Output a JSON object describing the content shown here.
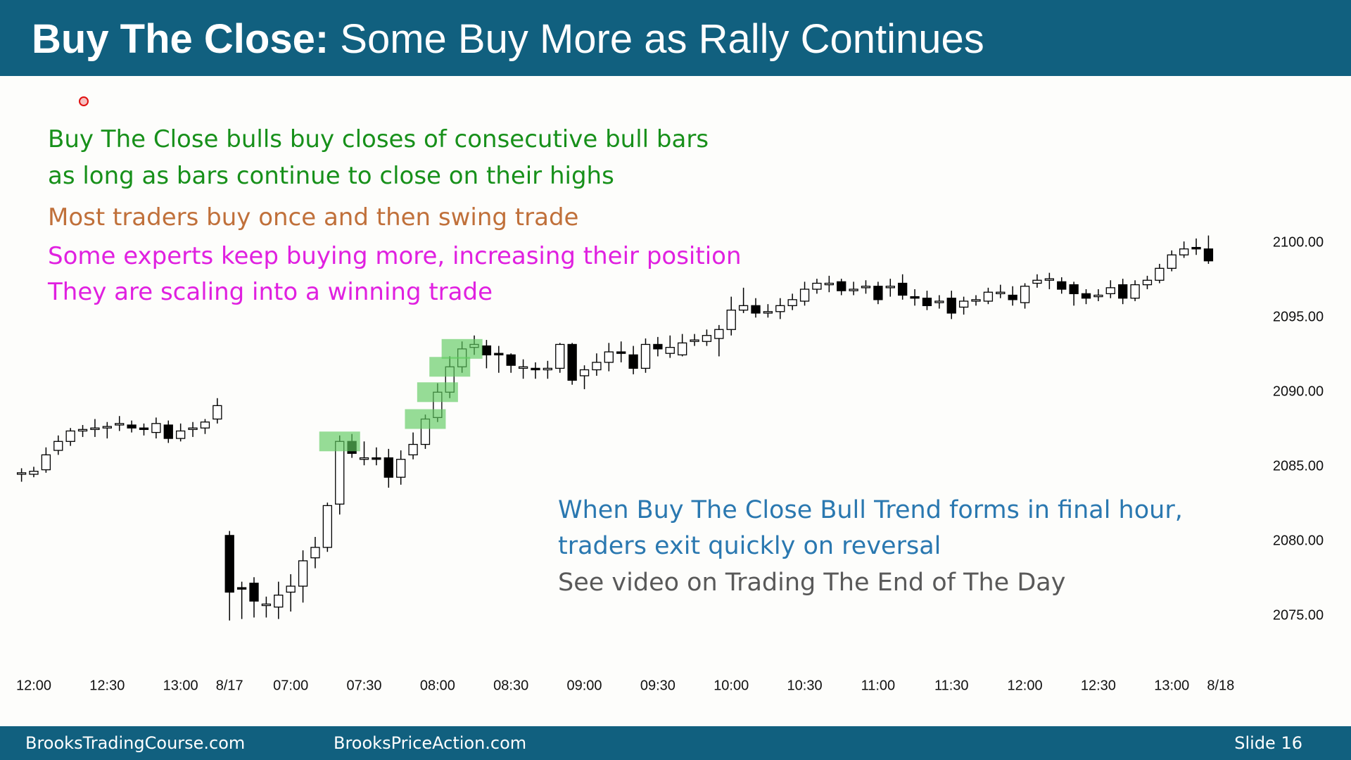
{
  "header": {
    "title_lead": "Buy The Close:",
    "title_rest": "Some Buy More as Rally Continues"
  },
  "notes": [
    {
      "text": "Buy The Close bulls buy closes of consecutive bull bars",
      "color": "#17901a"
    },
    {
      "text": "as long as bars continue to close on their highs",
      "color": "#17901a"
    },
    {
      "text": "Most traders buy once and then swing trade",
      "color": "#c0703a"
    },
    {
      "text": "Some experts keep buying more, increasing their position",
      "color": "#e020e0"
    },
    {
      "text": "They are scaling into a winning trade",
      "color": "#e020e0"
    }
  ],
  "bottom_notes": [
    {
      "text": "When Buy The Close Bull Trend forms in final hour,",
      "color": "#2a78b0"
    },
    {
      "text": "traders exit quickly on reversal",
      "color": "#2a78b0"
    },
    {
      "text": "See video on Trading The End of The Day",
      "color": "#595959"
    }
  ],
  "footer": {
    "left": "BrooksTradingCourse.com",
    "center": "BrooksPriceAction.com",
    "right": "Slide  16"
  },
  "chart_data": {
    "type": "candlestick",
    "categories": [
      null,
      "12:00",
      null,
      null,
      null,
      null,
      null,
      "12:30",
      null,
      null,
      null,
      null,
      null,
      "13:00",
      null,
      null,
      null,
      "8/17",
      null,
      null,
      null,
      null,
      "07:00",
      null,
      null,
      null,
      null,
      null,
      "07:30",
      null,
      null,
      null,
      null,
      null,
      "08:00",
      null,
      null,
      null,
      null,
      null,
      "08:30",
      null,
      null,
      null,
      null,
      null,
      "09:00",
      null,
      null,
      null,
      null,
      null,
      "09:30",
      null,
      null,
      null,
      null,
      null,
      "10:00",
      null,
      null,
      null,
      null,
      null,
      "10:30",
      null,
      null,
      null,
      null,
      null,
      "11:00",
      null,
      null,
      null,
      null,
      null,
      "11:30",
      null,
      null,
      null,
      null,
      null,
      "12:00",
      null,
      null,
      null,
      null,
      null,
      "12:30",
      null,
      null,
      null,
      null,
      null,
      "13:00",
      null,
      null,
      null,
      "8/18"
    ],
    "open": [
      2084.5,
      2084.5,
      2084.8,
      2086.1,
      2086.7,
      2087.4,
      2087.5,
      2087.6,
      2087.8,
      2087.8,
      2087.6,
      2087.3,
      2087.8,
      2086.9,
      2087.5,
      2087.6,
      2088.2,
      2080.4,
      2076.9,
      2077.2,
      2075.7,
      2075.6,
      2076.6,
      2077.0,
      2078.9,
      2079.6,
      2082.5,
      2086.7,
      2085.5,
      2085.6,
      2085.6,
      2084.3,
      2085.8,
      2086.5,
      2088.3,
      2090.0,
      2091.7,
      2093.0,
      2093.1,
      2092.6,
      2092.5,
      2091.6,
      2091.6,
      2091.5,
      2091.6,
      2093.2,
      2091.1,
      2091.5,
      2092.0,
      2092.7,
      2092.5,
      2091.6,
      2093.2,
      2092.6,
      2092.5,
      2093.4,
      2093.4,
      2093.6,
      2094.2,
      2095.5,
      2095.8,
      2095.3,
      2095.4,
      2095.8,
      2096.1,
      2096.9,
      2097.2,
      2097.4,
      2096.8,
      2097.0,
      2097.1,
      2097.0,
      2097.3,
      2096.4,
      2096.3,
      2096.0,
      2096.3,
      2095.7,
      2096.1,
      2096.1,
      2096.6,
      2096.5,
      2096.0,
      2097.3,
      2097.5,
      2097.4,
      2097.2,
      2096.6,
      2096.4,
      2096.6,
      2097.2,
      2096.3,
      2097.2,
      2097.5,
      2098.3,
      2099.2,
      2099.7,
      2099.6,
      null
    ],
    "high": [
      2084.9,
      2085.0,
      2086.3,
      2087.1,
      2087.6,
      2087.8,
      2088.2,
      2088.0,
      2088.4,
      2088.1,
      2087.9,
      2088.3,
      2088.1,
      2087.9,
      2088.0,
      2088.2,
      2089.6,
      2080.7,
      2077.3,
      2077.6,
      2076.3,
      2077.3,
      2077.8,
      2079.4,
      2080.3,
      2082.6,
      2087.1,
      2087.2,
      2086.7,
      2086.3,
      2086.2,
      2086.1,
      2087.3,
      2088.5,
      2090.6,
      2092.4,
      2093.4,
      2093.8,
      2093.5,
      2093.1,
      2092.6,
      2092.2,
      2092.0,
      2092.1,
      2093.3,
      2093.3,
      2091.8,
      2092.6,
      2093.3,
      2093.4,
      2093.1,
      2093.6,
      2093.7,
      2093.8,
      2093.9,
      2093.9,
      2094.2,
      2094.5,
      2096.4,
      2097.0,
      2096.3,
      2095.9,
      2096.3,
      2096.6,
      2097.4,
      2097.6,
      2097.8,
      2097.6,
      2097.4,
      2097.5,
      2097.4,
      2097.6,
      2097.9,
      2096.9,
      2096.8,
      2096.5,
      2096.8,
      2096.4,
      2096.5,
      2097.0,
      2097.2,
      2097.1,
      2097.3,
      2097.9,
      2098.0,
      2097.7,
      2097.4,
      2096.9,
      2096.9,
      2097.5,
      2097.6,
      2097.5,
      2097.8,
      2098.6,
      2099.5,
      2100.1,
      2100.3,
      2100.5,
      null
    ],
    "low": [
      2084.0,
      2084.3,
      2084.6,
      2085.8,
      2086.4,
      2087.0,
      2087.0,
      2086.9,
      2087.4,
      2087.3,
      2087.1,
      2086.9,
      2086.6,
      2086.7,
      2087.0,
      2087.2,
      2087.9,
      2074.7,
      2074.8,
      2074.9,
      2074.9,
      2074.8,
      2075.3,
      2075.9,
      2078.2,
      2079.3,
      2081.8,
      2085.6,
      2085.1,
      2085.1,
      2083.6,
      2083.8,
      2085.5,
      2086.2,
      2088.0,
      2089.6,
      2091.3,
      2092.5,
      2091.6,
      2091.3,
      2091.3,
      2090.9,
      2090.9,
      2090.9,
      2091.3,
      2090.5,
      2090.2,
      2091.1,
      2091.4,
      2092.0,
      2091.2,
      2091.3,
      2092.4,
      2092.3,
      2092.4,
      2093.1,
      2093.1,
      2092.4,
      2093.8,
      2095.3,
      2095.0,
      2095.0,
      2094.9,
      2095.5,
      2095.8,
      2096.6,
      2096.7,
      2096.5,
      2096.5,
      2096.6,
      2095.9,
      2096.4,
      2096.2,
      2095.8,
      2095.5,
      2095.6,
      2094.9,
      2095.2,
      2095.8,
      2095.9,
      2096.3,
      2095.8,
      2095.6,
      2097.0,
      2096.9,
      2096.6,
      2095.8,
      2095.9,
      2096.1,
      2096.3,
      2095.9,
      2096.1,
      2096.9,
      2097.3,
      2098.1,
      2099.0,
      2099.2,
      2098.6,
      null
    ],
    "close": [
      2084.6,
      2084.7,
      2085.8,
      2086.7,
      2087.4,
      2087.5,
      2087.6,
      2087.7,
      2087.9,
      2087.6,
      2087.5,
      2087.9,
      2086.9,
      2087.4,
      2087.6,
      2088.0,
      2089.1,
      2076.6,
      2076.8,
      2076.0,
      2075.8,
      2076.4,
      2077.0,
      2078.7,
      2079.6,
      2082.4,
      2086.7,
      2085.9,
      2085.6,
      2085.5,
      2084.3,
      2085.5,
      2086.5,
      2088.2,
      2090.0,
      2091.7,
      2092.9,
      2093.2,
      2092.5,
      2092.5,
      2091.8,
      2091.7,
      2091.5,
      2091.6,
      2093.2,
      2090.8,
      2091.5,
      2092.0,
      2092.7,
      2092.6,
      2091.6,
      2093.2,
      2092.9,
      2093.0,
      2093.3,
      2093.5,
      2093.8,
      2094.2,
      2095.5,
      2095.8,
      2095.3,
      2095.4,
      2095.8,
      2096.2,
      2096.9,
      2097.3,
      2097.3,
      2096.8,
      2096.9,
      2097.1,
      2096.2,
      2097.1,
      2096.5,
      2096.3,
      2095.8,
      2096.1,
      2095.3,
      2096.1,
      2096.2,
      2096.7,
      2096.7,
      2096.2,
      2097.1,
      2097.5,
      2097.6,
      2096.9,
      2096.6,
      2096.3,
      2096.5,
      2097.0,
      2096.3,
      2097.2,
      2097.5,
      2098.3,
      2099.2,
      2099.6,
      2099.6,
      2098.8,
      null
    ],
    "up_color": "#ffffff",
    "down_color": "#000000",
    "highlight_bars": [
      26,
      33,
      34,
      35,
      36
    ],
    "highlight_color": "#5fcb5f",
    "ylim": [
      2072,
      2111
    ],
    "yticks": [
      {
        "value": 2100,
        "label": "2100.00"
      },
      {
        "value": 2095,
        "label": "2095.00"
      },
      {
        "value": 2090,
        "label": "2090.00"
      },
      {
        "value": 2085,
        "label": "2085.00"
      },
      {
        "value": 2080,
        "label": "2080.00"
      },
      {
        "value": 2075,
        "label": "2075.00"
      }
    ],
    "grid": false
  }
}
